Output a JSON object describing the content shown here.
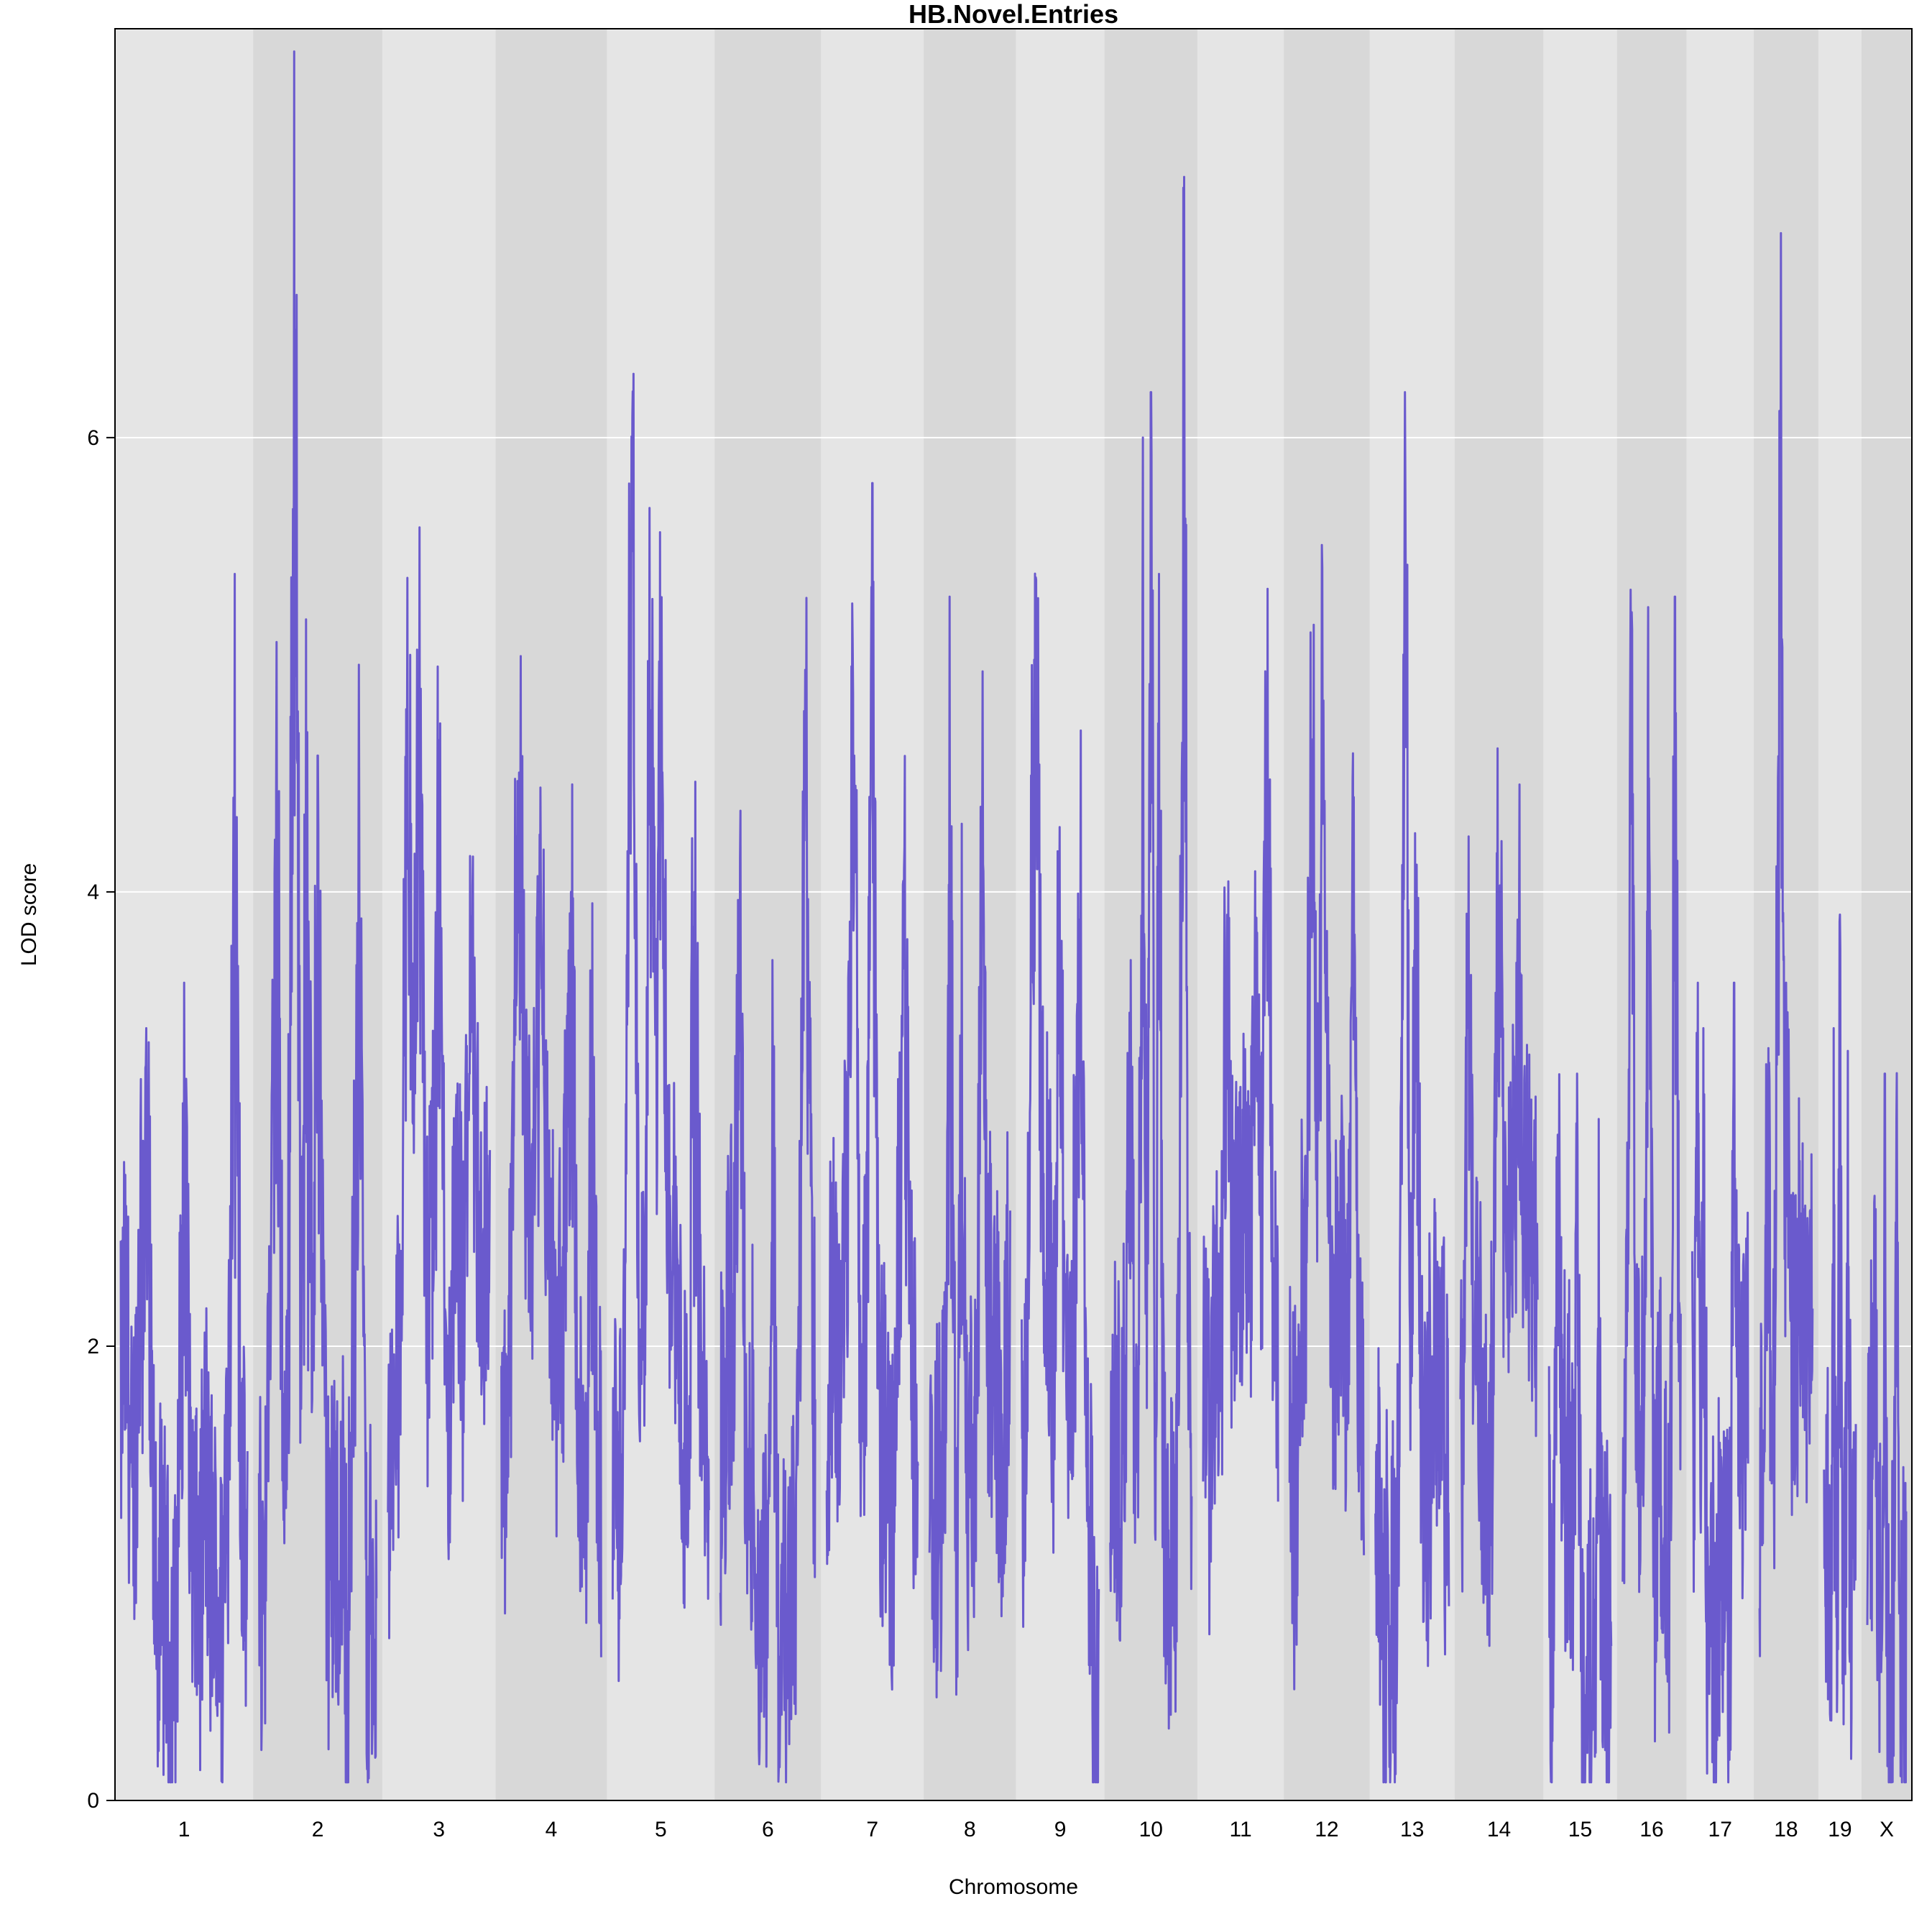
{
  "chart_data": {
    "type": "line",
    "title": "HB.Novel.Entries",
    "xlabel": "Chromosome",
    "ylabel": "LOD score",
    "ylim": [
      0,
      7.8
    ],
    "yticks": [
      0,
      2,
      4,
      6
    ],
    "grid": true,
    "line_color": "#6a5acd",
    "band_colors": [
      "#e5e5e5",
      "#d8d8d8"
    ],
    "chromosomes": [
      {
        "name": "1",
        "length": 195,
        "peaks": [
          [
            0.05,
            1.9
          ],
          [
            0.2,
            3.4
          ],
          [
            0.5,
            3.6
          ],
          [
            0.9,
            5.4
          ]
        ]
      },
      {
        "name": "2",
        "length": 182,
        "peaks": [
          [
            0.15,
            5.1
          ],
          [
            0.3,
            7.7
          ],
          [
            0.4,
            5.2
          ],
          [
            0.5,
            4.6
          ],
          [
            0.85,
            5.0
          ]
        ]
      },
      {
        "name": "3",
        "length": 160,
        "peaks": [
          [
            0.2,
            4.1
          ],
          [
            0.3,
            4.5
          ],
          [
            0.5,
            4.0
          ],
          [
            0.8,
            3.2
          ]
        ]
      },
      {
        "name": "4",
        "length": 157,
        "peaks": [
          [
            0.17,
            4.3
          ],
          [
            0.4,
            3.8
          ],
          [
            0.7,
            4.0
          ],
          [
            0.9,
            3.4
          ]
        ]
      },
      {
        "name": "5",
        "length": 152,
        "peaks": [
          [
            0.2,
            5.5
          ],
          [
            0.4,
            4.8
          ],
          [
            0.5,
            4.5
          ],
          [
            0.85,
            4.0
          ]
        ]
      },
      {
        "name": "6",
        "length": 150,
        "peaks": [
          [
            0.2,
            3.3
          ],
          [
            0.55,
            3.7
          ],
          [
            0.9,
            4.6
          ]
        ]
      },
      {
        "name": "7",
        "length": 145,
        "peaks": [
          [
            0.3,
            4.6
          ],
          [
            0.5,
            5.8
          ],
          [
            0.85,
            4.2
          ]
        ]
      },
      {
        "name": "8",
        "length": 130,
        "peaks": [
          [
            0.25,
            5.3
          ],
          [
            0.4,
            4.3
          ],
          [
            0.65,
            4.0
          ]
        ]
      },
      {
        "name": "9",
        "length": 125,
        "peaks": [
          [
            0.15,
            3.6
          ],
          [
            0.2,
            4.1
          ],
          [
            0.5,
            3.1
          ],
          [
            0.75,
            3.6
          ]
        ]
      },
      {
        "name": "10",
        "length": 131,
        "peaks": [
          [
            0.25,
            3.7
          ],
          [
            0.4,
            6.0
          ],
          [
            0.5,
            6.2
          ],
          [
            0.6,
            5.4
          ],
          [
            0.9,
            7.1
          ]
        ]
      },
      {
        "name": "11",
        "length": 122,
        "peaks": [
          [
            0.3,
            2.6
          ],
          [
            0.7,
            3.1
          ],
          [
            0.85,
            3.9
          ]
        ]
      },
      {
        "name": "12",
        "length": 121,
        "peaks": [
          [
            0.3,
            3.8
          ],
          [
            0.45,
            4.3
          ],
          [
            0.85,
            4.5
          ]
        ]
      },
      {
        "name": "13",
        "length": 120,
        "peaks": [
          [
            0.4,
            6.2
          ],
          [
            0.55,
            3.6
          ],
          [
            0.8,
            2.3
          ]
        ]
      },
      {
        "name": "14",
        "length": 125,
        "peaks": [
          [
            0.1,
            3.4
          ],
          [
            0.5,
            3.1
          ],
          [
            0.75,
            2.8
          ]
        ]
      },
      {
        "name": "15",
        "length": 104,
        "peaks": [
          [
            0.15,
            2.8
          ],
          [
            0.45,
            3.2
          ],
          [
            0.8,
            3.0
          ]
        ]
      },
      {
        "name": "16",
        "length": 98,
        "peaks": [
          [
            0.15,
            4.3
          ],
          [
            0.45,
            4.5
          ],
          [
            0.9,
            5.3
          ]
        ]
      },
      {
        "name": "17",
        "length": 95,
        "peaks": [
          [
            0.1,
            3.6
          ],
          [
            0.2,
            3.4
          ],
          [
            0.75,
            3.6
          ]
        ]
      },
      {
        "name": "18",
        "length": 91,
        "peaks": [
          [
            0.15,
            3.1
          ],
          [
            0.35,
            4.5
          ],
          [
            0.4,
            6.9
          ],
          [
            0.5,
            3.6
          ]
        ]
      },
      {
        "name": "19",
        "length": 61,
        "peaks": [
          [
            0.3,
            3.4
          ],
          [
            0.5,
            3.9
          ],
          [
            0.75,
            3.3
          ]
        ]
      },
      {
        "name": "X",
        "length": 71,
        "peaks": [
          [
            0.2,
            2.3
          ],
          [
            0.45,
            3.2
          ],
          [
            0.75,
            3.0
          ]
        ]
      }
    ]
  }
}
